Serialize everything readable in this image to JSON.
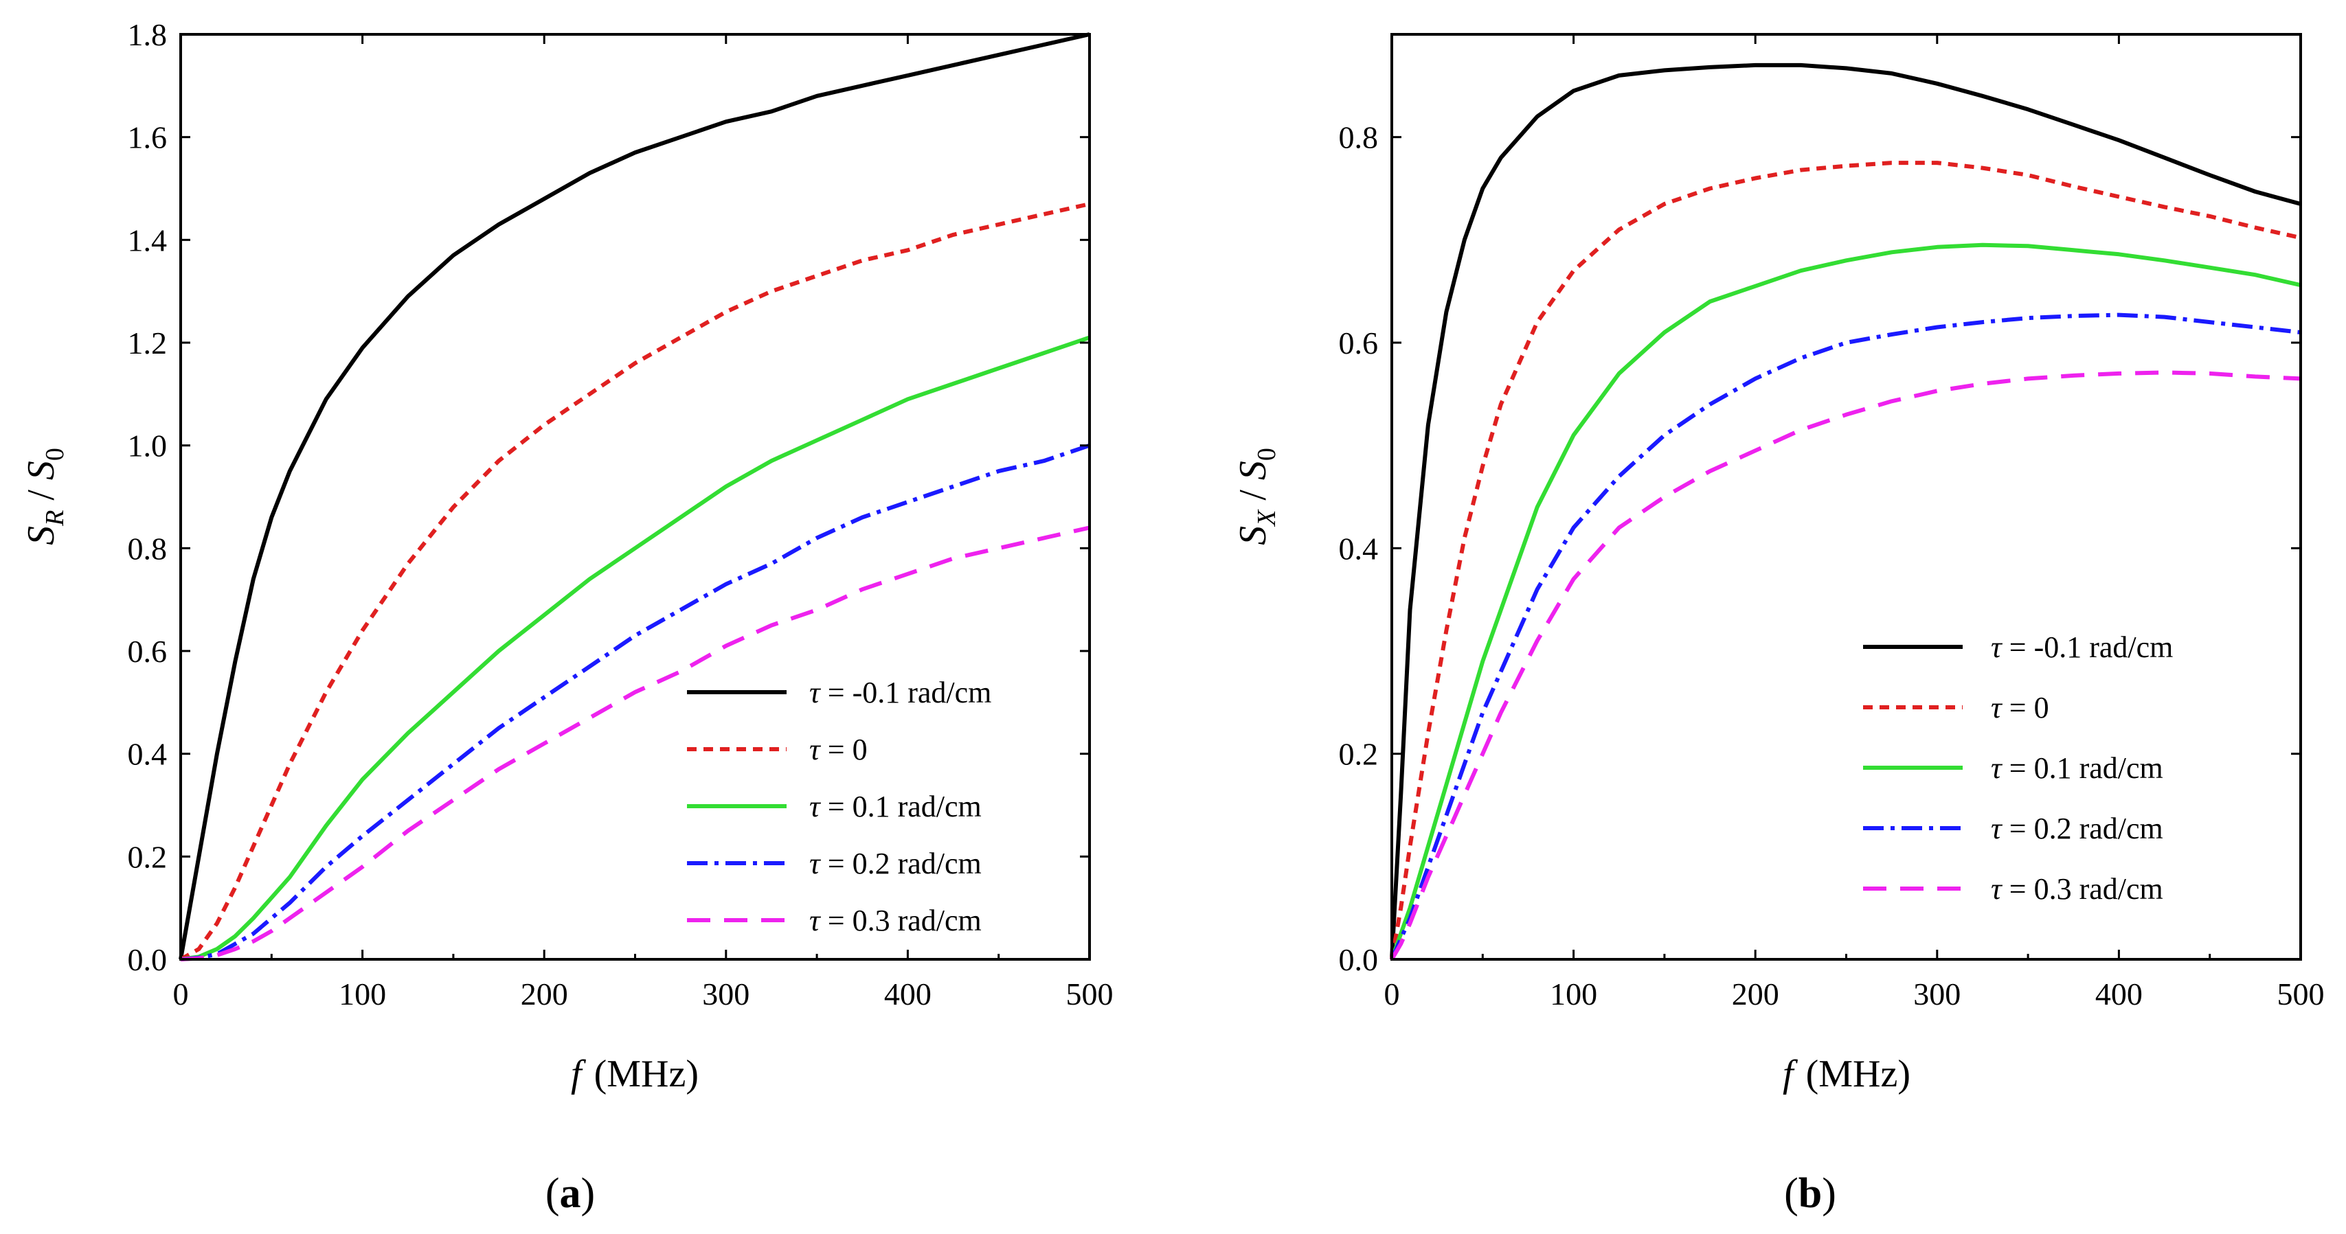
{
  "panels": [
    {
      "label_open": "(",
      "label_letter": "a",
      "label_close": ")"
    },
    {
      "label_open": "(",
      "label_letter": "b",
      "label_close": ")"
    }
  ],
  "legend_text": {
    "tau": "τ",
    "eq": " = ",
    "entries": [
      "-0.1 rad/cm",
      "0",
      "0.1 rad/cm",
      "0.2 rad/cm",
      "0.3 rad/cm"
    ]
  },
  "axis_text": {
    "x": {
      "var": "f",
      "unit": "(MHz)"
    },
    "y_a": {
      "s1": "S",
      "sub1": "R",
      "sep": " / ",
      "s2": "S",
      "sub2": "0"
    },
    "y_b": {
      "s1": "S",
      "sub1": "X",
      "sep": " / ",
      "s2": "S",
      "sub2": "0"
    }
  },
  "chart_data": [
    {
      "type": "line",
      "xlabel": "f (MHz)",
      "ylabel": "S_R / S_0",
      "xlim": [
        0,
        500
      ],
      "ylim": [
        0,
        1.8
      ],
      "x_ticks": [
        0,
        100,
        200,
        300,
        400,
        500
      ],
      "x_tick_labels": [
        "0",
        "100",
        "200",
        "300",
        "400",
        "500"
      ],
      "y_ticks": [
        0,
        0.2,
        0.4,
        0.6,
        0.8,
        1.0,
        1.2,
        1.4,
        1.6,
        1.8
      ],
      "y_tick_labels": [
        "0.0",
        "0.2",
        "0.4",
        "0.6",
        "0.8",
        "1.0",
        "1.2",
        "1.4",
        "1.6",
        "1.8"
      ],
      "legend_position": "lower-right",
      "grid": false,
      "x": [
        0,
        10,
        20,
        30,
        40,
        50,
        60,
        80,
        100,
        125,
        150,
        175,
        200,
        225,
        250,
        275,
        300,
        325,
        350,
        375,
        400,
        425,
        450,
        475,
        500
      ],
      "series": [
        {
          "name": "τ = -0.1 rad/cm",
          "color": "#000000",
          "dash": "solid",
          "values": [
            0,
            0.2,
            0.4,
            0.58,
            0.74,
            0.86,
            0.95,
            1.09,
            1.19,
            1.29,
            1.37,
            1.43,
            1.48,
            1.53,
            1.57,
            1.6,
            1.63,
            1.65,
            1.68,
            1.7,
            1.72,
            1.74,
            1.76,
            1.78,
            1.8
          ]
        },
        {
          "name": "τ = 0",
          "color": "#e02020",
          "dash": "short-dash",
          "values": [
            0,
            0.02,
            0.07,
            0.14,
            0.22,
            0.3,
            0.38,
            0.52,
            0.64,
            0.77,
            0.88,
            0.97,
            1.04,
            1.1,
            1.16,
            1.21,
            1.26,
            1.3,
            1.33,
            1.36,
            1.38,
            1.41,
            1.43,
            1.45,
            1.47
          ]
        },
        {
          "name": "τ = 0.1 rad/cm",
          "color": "#33dd33",
          "dash": "solid",
          "values": [
            0,
            0.005,
            0.02,
            0.045,
            0.08,
            0.12,
            0.16,
            0.26,
            0.35,
            0.44,
            0.52,
            0.6,
            0.67,
            0.74,
            0.8,
            0.86,
            0.92,
            0.97,
            1.01,
            1.05,
            1.09,
            1.12,
            1.15,
            1.18,
            1.21
          ]
        },
        {
          "name": "τ = 0.2 rad/cm",
          "color": "#1a1aff",
          "dash": "dash-dot",
          "values": [
            0,
            0.003,
            0.01,
            0.03,
            0.05,
            0.08,
            0.11,
            0.18,
            0.24,
            0.31,
            0.38,
            0.45,
            0.51,
            0.57,
            0.63,
            0.68,
            0.73,
            0.77,
            0.82,
            0.86,
            0.89,
            0.92,
            0.95,
            0.97,
            1.0
          ]
        },
        {
          "name": "τ = 0.3 rad/cm",
          "color": "#ee22ee",
          "dash": "long-dash",
          "values": [
            0,
            0.002,
            0.008,
            0.02,
            0.035,
            0.055,
            0.08,
            0.13,
            0.18,
            0.25,
            0.31,
            0.37,
            0.42,
            0.47,
            0.52,
            0.56,
            0.61,
            0.65,
            0.68,
            0.72,
            0.75,
            0.78,
            0.8,
            0.82,
            0.84
          ]
        }
      ]
    },
    {
      "type": "line",
      "xlabel": "f (MHz)",
      "ylabel": "S_X / S_0",
      "xlim": [
        0,
        500
      ],
      "ylim": [
        0,
        0.9
      ],
      "x_ticks": [
        0,
        100,
        200,
        300,
        400,
        500
      ],
      "x_tick_labels": [
        "0",
        "100",
        "200",
        "300",
        "400",
        "500"
      ],
      "y_ticks": [
        0,
        0.2,
        0.4,
        0.6,
        0.8
      ],
      "y_tick_labels": [
        "0.0",
        "0.2",
        "0.4",
        "0.6",
        "0.8"
      ],
      "legend_position": "right",
      "grid": false,
      "x": [
        0,
        5,
        10,
        20,
        30,
        40,
        50,
        60,
        80,
        100,
        125,
        150,
        175,
        200,
        225,
        250,
        275,
        300,
        325,
        350,
        375,
        400,
        425,
        450,
        475,
        500
      ],
      "series": [
        {
          "name": "τ = -0.1 rad/cm",
          "color": "#000000",
          "dash": "solid",
          "values": [
            0,
            0.16,
            0.34,
            0.52,
            0.63,
            0.7,
            0.75,
            0.78,
            0.82,
            0.845,
            0.86,
            0.865,
            0.868,
            0.87,
            0.87,
            0.867,
            0.862,
            0.852,
            0.84,
            0.827,
            0.812,
            0.797,
            0.78,
            0.763,
            0.747,
            0.735
          ]
        },
        {
          "name": "τ = 0",
          "color": "#e02020",
          "dash": "short-dash",
          "values": [
            0,
            0.05,
            0.11,
            0.22,
            0.32,
            0.41,
            0.48,
            0.54,
            0.62,
            0.67,
            0.71,
            0.735,
            0.75,
            0.76,
            0.768,
            0.772,
            0.775,
            0.775,
            0.77,
            0.763,
            0.752,
            0.742,
            0.732,
            0.723,
            0.712,
            0.702
          ]
        },
        {
          "name": "τ = 0.1 rad/cm",
          "color": "#33dd33",
          "dash": "solid",
          "values": [
            0,
            0.025,
            0.05,
            0.11,
            0.17,
            0.23,
            0.29,
            0.34,
            0.44,
            0.51,
            0.57,
            0.61,
            0.64,
            0.655,
            0.67,
            0.68,
            0.688,
            0.693,
            0.695,
            0.694,
            0.69,
            0.686,
            0.68,
            0.673,
            0.666,
            0.656
          ]
        },
        {
          "name": "τ = 0.2 rad/cm",
          "color": "#1a1aff",
          "dash": "dash-dot",
          "values": [
            0,
            0.02,
            0.04,
            0.09,
            0.14,
            0.19,
            0.24,
            0.28,
            0.36,
            0.42,
            0.47,
            0.51,
            0.54,
            0.565,
            0.585,
            0.6,
            0.608,
            0.615,
            0.62,
            0.624,
            0.626,
            0.627,
            0.625,
            0.62,
            0.615,
            0.61
          ]
        },
        {
          "name": "τ = 0.3 rad/cm",
          "color": "#ee22ee",
          "dash": "long-dash",
          "values": [
            0,
            0.015,
            0.035,
            0.08,
            0.12,
            0.16,
            0.2,
            0.24,
            0.31,
            0.37,
            0.42,
            0.45,
            0.475,
            0.495,
            0.515,
            0.53,
            0.543,
            0.553,
            0.56,
            0.565,
            0.568,
            0.57,
            0.571,
            0.57,
            0.567,
            0.565
          ]
        }
      ]
    }
  ]
}
